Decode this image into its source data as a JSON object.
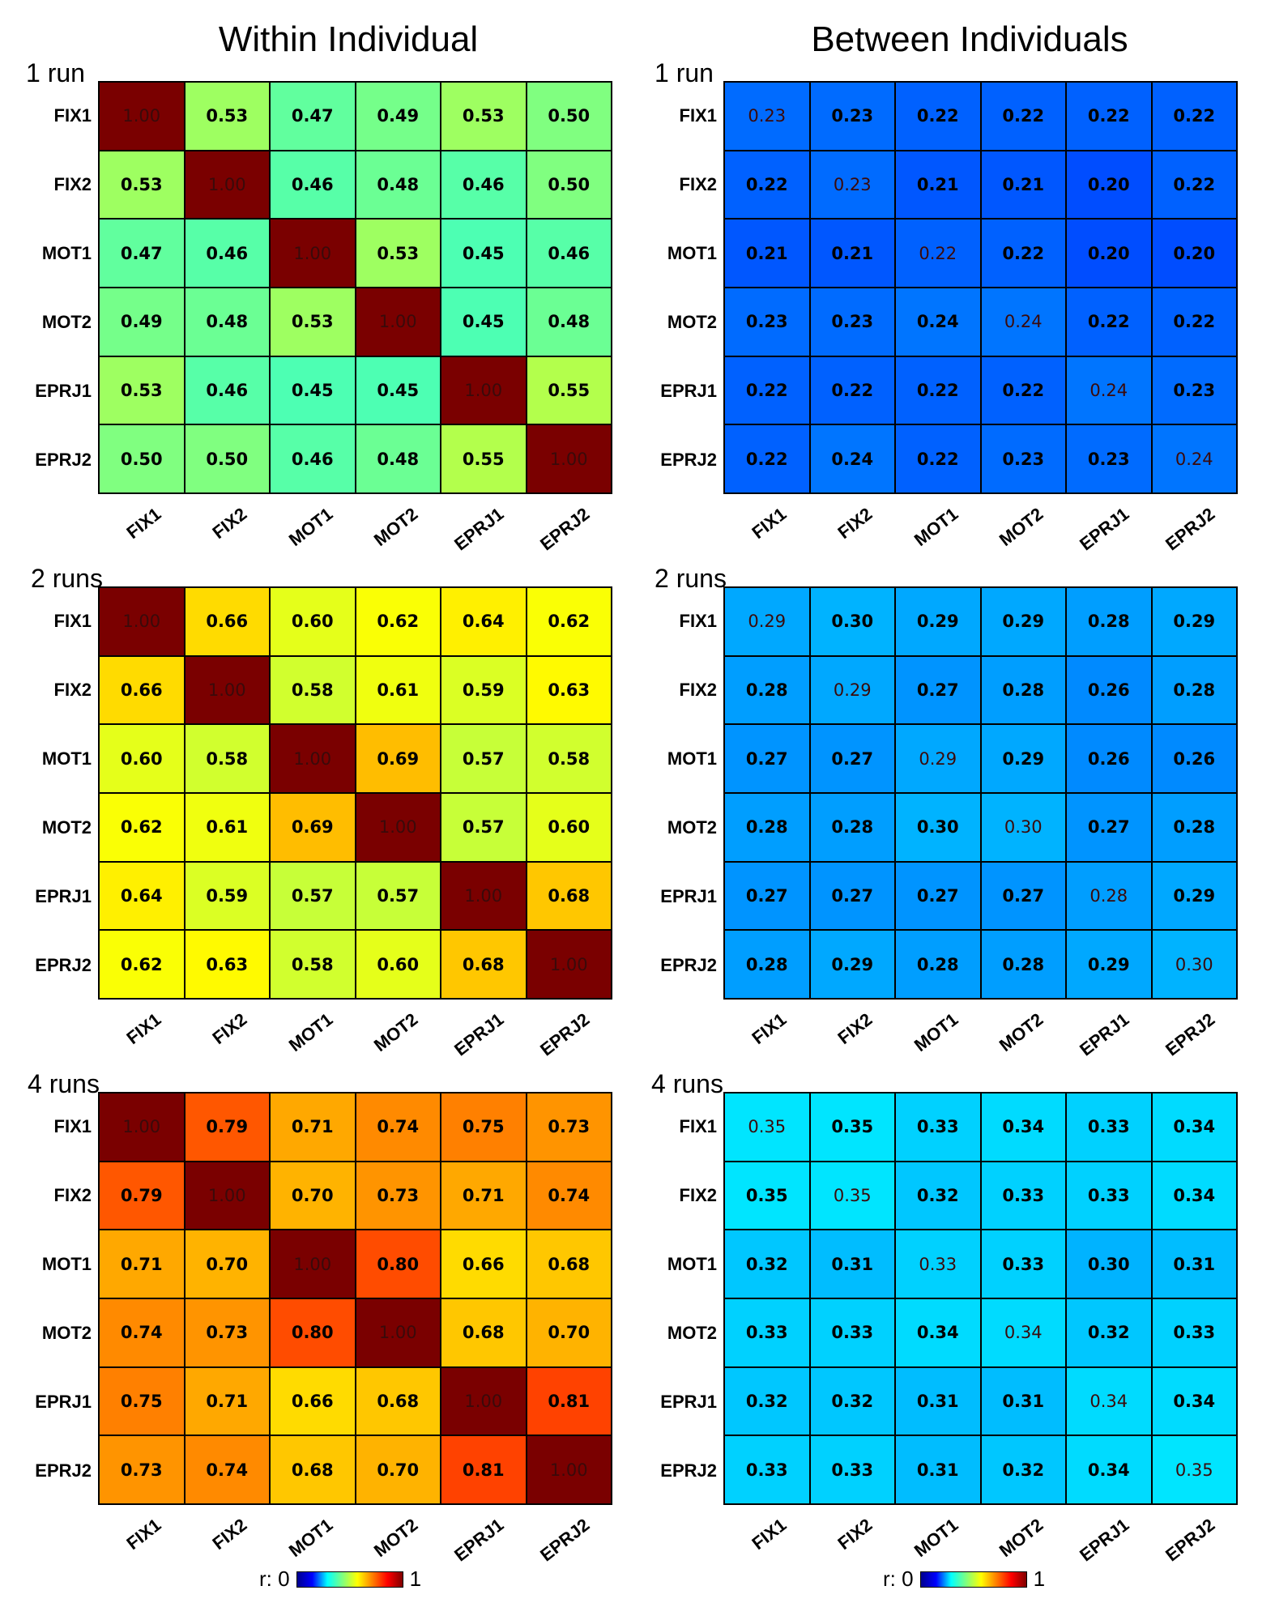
{
  "columns": [
    "Within Individual",
    "Between Individuals"
  ],
  "colorbar": {
    "label": "r: 0",
    "max_label": "1"
  },
  "chart_data": [
    {
      "type": "heatmap",
      "title": "Within Individual",
      "panel": "1 run",
      "rows": [
        "FIX1",
        "FIX2",
        "MOT1",
        "MOT2",
        "EPRJ1",
        "EPRJ2"
      ],
      "cols": [
        "FIX1",
        "FIX2",
        "MOT1",
        "MOT2",
        "EPRJ1",
        "EPRJ2"
      ],
      "range": [
        0,
        1
      ],
      "values": [
        [
          1.0,
          0.53,
          0.47,
          0.49,
          0.53,
          0.5
        ],
        [
          0.53,
          1.0,
          0.46,
          0.48,
          0.46,
          0.5
        ],
        [
          0.47,
          0.46,
          1.0,
          0.53,
          0.45,
          0.46
        ],
        [
          0.49,
          0.48,
          0.53,
          1.0,
          0.45,
          0.48
        ],
        [
          0.53,
          0.46,
          0.45,
          0.45,
          1.0,
          0.55
        ],
        [
          0.5,
          0.5,
          0.46,
          0.48,
          0.55,
          1.0
        ]
      ]
    },
    {
      "type": "heatmap",
      "title": "Between Individuals",
      "panel": "1 run",
      "rows": [
        "FIX1",
        "FIX2",
        "MOT1",
        "MOT2",
        "EPRJ1",
        "EPRJ2"
      ],
      "cols": [
        "FIX1",
        "FIX2",
        "MOT1",
        "MOT2",
        "EPRJ1",
        "EPRJ2"
      ],
      "range": [
        0,
        1
      ],
      "values": [
        [
          0.23,
          0.23,
          0.22,
          0.22,
          0.22,
          0.22
        ],
        [
          0.22,
          0.23,
          0.21,
          0.21,
          0.2,
          0.22
        ],
        [
          0.21,
          0.21,
          0.22,
          0.22,
          0.2,
          0.2
        ],
        [
          0.23,
          0.23,
          0.24,
          0.24,
          0.22,
          0.22
        ],
        [
          0.22,
          0.22,
          0.22,
          0.22,
          0.24,
          0.23
        ],
        [
          0.22,
          0.24,
          0.22,
          0.23,
          0.23,
          0.24
        ]
      ]
    },
    {
      "type": "heatmap",
      "title": "Within Individual",
      "panel": "2 runs",
      "rows": [
        "FIX1",
        "FIX2",
        "MOT1",
        "MOT2",
        "EPRJ1",
        "EPRJ2"
      ],
      "cols": [
        "FIX1",
        "FIX2",
        "MOT1",
        "MOT2",
        "EPRJ1",
        "EPRJ2"
      ],
      "range": [
        0,
        1
      ],
      "values": [
        [
          1.0,
          0.66,
          0.6,
          0.62,
          0.64,
          0.62
        ],
        [
          0.66,
          1.0,
          0.58,
          0.61,
          0.59,
          0.63
        ],
        [
          0.6,
          0.58,
          1.0,
          0.69,
          0.57,
          0.58
        ],
        [
          0.62,
          0.61,
          0.69,
          1.0,
          0.57,
          0.6
        ],
        [
          0.64,
          0.59,
          0.57,
          0.57,
          1.0,
          0.68
        ],
        [
          0.62,
          0.63,
          0.58,
          0.6,
          0.68,
          1.0
        ]
      ]
    },
    {
      "type": "heatmap",
      "title": "Between Individuals",
      "panel": "2 runs",
      "rows": [
        "FIX1",
        "FIX2",
        "MOT1",
        "MOT2",
        "EPRJ1",
        "EPRJ2"
      ],
      "cols": [
        "FIX1",
        "FIX2",
        "MOT1",
        "MOT2",
        "EPRJ1",
        "EPRJ2"
      ],
      "range": [
        0,
        1
      ],
      "values": [
        [
          0.29,
          0.3,
          0.29,
          0.29,
          0.28,
          0.29
        ],
        [
          0.28,
          0.29,
          0.27,
          0.28,
          0.26,
          0.28
        ],
        [
          0.27,
          0.27,
          0.29,
          0.29,
          0.26,
          0.26
        ],
        [
          0.28,
          0.28,
          0.3,
          0.3,
          0.27,
          0.28
        ],
        [
          0.27,
          0.27,
          0.27,
          0.27,
          0.28,
          0.29
        ],
        [
          0.28,
          0.29,
          0.28,
          0.28,
          0.29,
          0.3
        ]
      ]
    },
    {
      "type": "heatmap",
      "title": "Within Individual",
      "panel": "4 runs",
      "rows": [
        "FIX1",
        "FIX2",
        "MOT1",
        "MOT2",
        "EPRJ1",
        "EPRJ2"
      ],
      "cols": [
        "FIX1",
        "FIX2",
        "MOT1",
        "MOT2",
        "EPRJ1",
        "EPRJ2"
      ],
      "range": [
        0,
        1
      ],
      "values": [
        [
          1.0,
          0.79,
          0.71,
          0.74,
          0.75,
          0.73
        ],
        [
          0.79,
          1.0,
          0.7,
          0.73,
          0.71,
          0.74
        ],
        [
          0.71,
          0.7,
          1.0,
          0.8,
          0.66,
          0.68
        ],
        [
          0.74,
          0.73,
          0.8,
          1.0,
          0.68,
          0.7
        ],
        [
          0.75,
          0.71,
          0.66,
          0.68,
          1.0,
          0.81
        ],
        [
          0.73,
          0.74,
          0.68,
          0.7,
          0.81,
          1.0
        ]
      ]
    },
    {
      "type": "heatmap",
      "title": "Between Individuals",
      "panel": "4 runs",
      "rows": [
        "FIX1",
        "FIX2",
        "MOT1",
        "MOT2",
        "EPRJ1",
        "EPRJ2"
      ],
      "cols": [
        "FIX1",
        "FIX2",
        "MOT1",
        "MOT2",
        "EPRJ1",
        "EPRJ2"
      ],
      "range": [
        0,
        1
      ],
      "values": [
        [
          0.35,
          0.35,
          0.33,
          0.34,
          0.33,
          0.34
        ],
        [
          0.35,
          0.35,
          0.32,
          0.33,
          0.33,
          0.34
        ],
        [
          0.32,
          0.31,
          0.33,
          0.33,
          0.3,
          0.31
        ],
        [
          0.33,
          0.33,
          0.34,
          0.34,
          0.32,
          0.33
        ],
        [
          0.32,
          0.32,
          0.31,
          0.31,
          0.34,
          0.34
        ],
        [
          0.33,
          0.33,
          0.31,
          0.32,
          0.34,
          0.35
        ]
      ]
    }
  ]
}
